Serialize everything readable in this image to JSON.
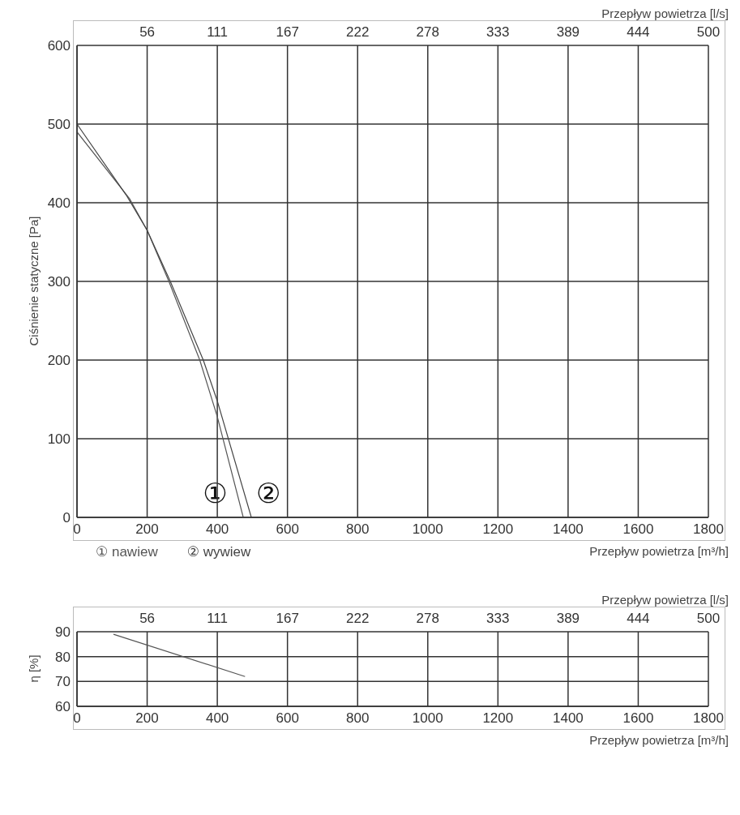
{
  "chart_data": [
    {
      "type": "line",
      "xlabel": "Przepływ powietrza [m³/h]",
      "ylabel": "Ciśnienie statyczne [Pa]",
      "x2label": "Przepływ powietrza [l/s]",
      "xlim": [
        0,
        1800
      ],
      "xticks": [
        0,
        200,
        400,
        600,
        800,
        1000,
        1200,
        1400,
        1600,
        1800
      ],
      "ylim": [
        0,
        600
      ],
      "yticks": [
        0,
        100,
        200,
        300,
        400,
        500,
        600
      ],
      "x2lim": [
        0,
        500
      ],
      "x2ticks": [
        {
          "value": 55.6,
          "label": "56"
        },
        {
          "value": 111.1,
          "label": "111"
        },
        {
          "value": 166.7,
          "label": "167"
        },
        {
          "value": 222.2,
          "label": "222"
        },
        {
          "value": 277.8,
          "label": "278"
        },
        {
          "value": 333.3,
          "label": "333"
        },
        {
          "value": 388.9,
          "label": "389"
        },
        {
          "value": 444.4,
          "label": "444"
        },
        500
      ],
      "series": [
        {
          "name": "① nawiew",
          "color": "#555555",
          "x": [
            0,
            150,
            200,
            262,
            350,
            400,
            474
          ],
          "values": [
            490,
            405,
            365,
            300,
            200,
            128,
            0
          ]
        },
        {
          "name": "② wywiew",
          "color": "#444444",
          "x": [
            0,
            140,
            200,
            266,
            360,
            400,
            497
          ],
          "values": [
            500,
            410,
            365,
            300,
            200,
            148,
            0
          ]
        }
      ],
      "annotations": [
        "①",
        "②"
      ],
      "grid": true,
      "legend": "bottom left",
      "marker": "none",
      "line_style": "solid"
    },
    {
      "type": "line",
      "xlabel": "Przepływ powietrza [m³/h]",
      "ylabel": "η [%]",
      "x2label": "Przepływ powietrza [l/s]",
      "xlim": [
        0,
        1800
      ],
      "xticks": [
        0,
        200,
        400,
        600,
        800,
        1000,
        1200,
        1400,
        1600,
        1800
      ],
      "ylim": [
        60,
        90
      ],
      "yticks": [
        60,
        70,
        80,
        90
      ],
      "x2lim": [
        0,
        500
      ],
      "x2ticks": [
        {
          "value": 55.6,
          "label": "56"
        },
        {
          "value": 111.1,
          "label": "111"
        },
        {
          "value": 166.7,
          "label": "167"
        },
        {
          "value": 222.2,
          "label": "222"
        },
        {
          "value": 277.8,
          "label": "278"
        },
        {
          "value": 333.3,
          "label": "333"
        },
        {
          "value": 388.9,
          "label": "389"
        },
        {
          "value": 444.4,
          "label": "444"
        },
        500
      ],
      "series": [
        {
          "color": "#555555",
          "x": [
            104,
            479
          ],
          "values": [
            89,
            72
          ]
        }
      ],
      "grid": true,
      "marker": "none",
      "line_style": "solid"
    }
  ]
}
